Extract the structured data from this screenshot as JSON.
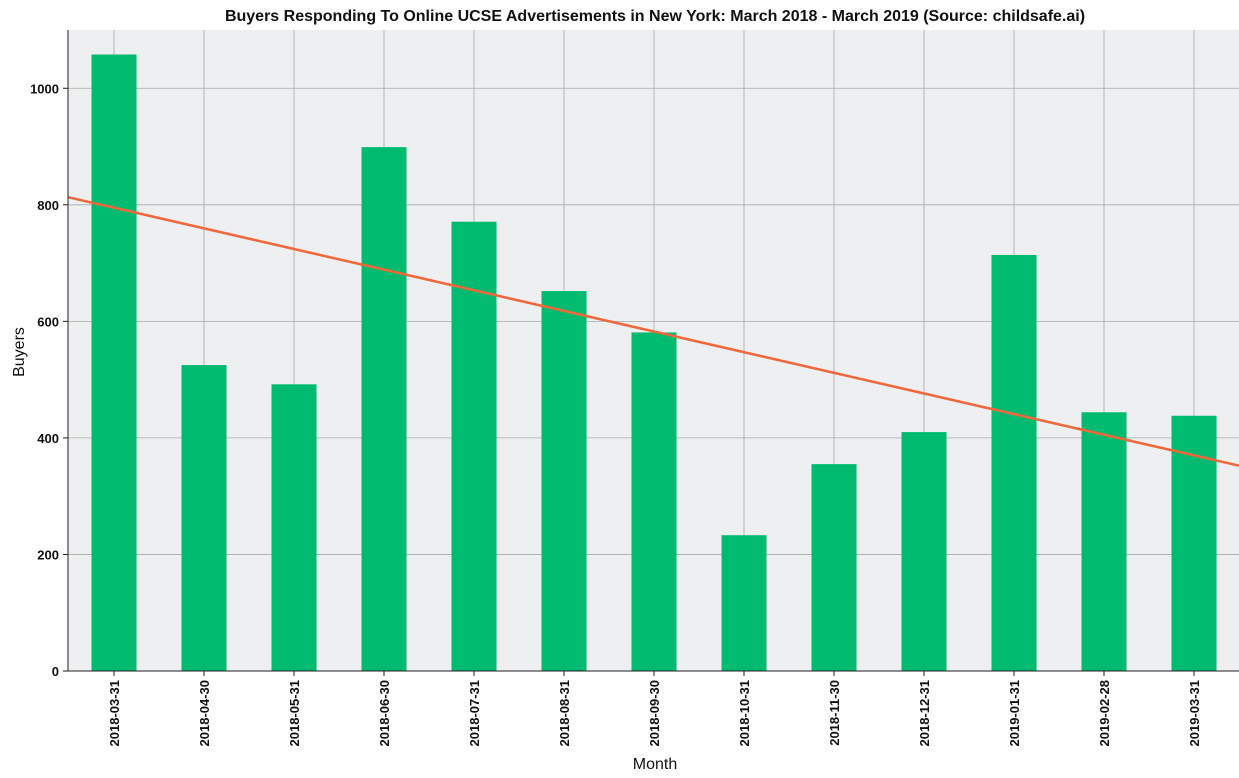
{
  "chart_data": {
    "type": "bar",
    "title": "Buyers Responding To Online UCSE Advertisements in New York: March 2018 - March 2019 (Source: childsafe.ai)",
    "xlabel": "Month",
    "ylabel": "Buyers",
    "categories": [
      "2018-03-31",
      "2018-04-30",
      "2018-05-31",
      "2018-06-30",
      "2018-07-31",
      "2018-08-31",
      "2018-09-30",
      "2018-10-31",
      "2018-11-30",
      "2018-12-31",
      "2019-01-31",
      "2019-02-28",
      "2019-03-31"
    ],
    "values": [
      1058,
      525,
      492,
      899,
      771,
      652,
      581,
      233,
      355,
      410,
      714,
      444,
      438
    ],
    "ylim": [
      0,
      1100
    ],
    "yticks": [
      0,
      200,
      400,
      600,
      800,
      1000
    ],
    "trendline": {
      "start": 795,
      "end": 370
    },
    "grid": true,
    "colors": {
      "bar": "#00bb6f",
      "trend": "#f0673c",
      "plot_bg": "#eeeff1",
      "grid": "#a8a8a8"
    }
  }
}
